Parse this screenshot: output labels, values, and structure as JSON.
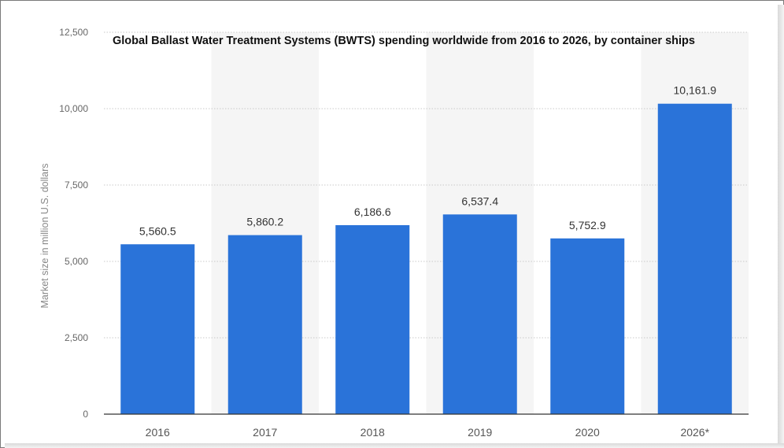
{
  "chart_data": {
    "type": "bar",
    "title": "Global Ballast Water Treatment Systems (BWTS) spending worldwide from 2016 to 2026, by container ships",
    "xlabel": "",
    "ylabel": "Market size in million U.S. dollars",
    "categories": [
      "2016",
      "2017",
      "2018",
      "2019",
      "2020",
      "2026*"
    ],
    "values": [
      5560.5,
      5860.2,
      6186.6,
      6537.4,
      5752.9,
      10161.9
    ],
    "value_labels": [
      "5,560.5",
      "5,860.2",
      "6,186.6",
      "6,537.4",
      "5,752.9",
      "10,161.9"
    ],
    "ylim": [
      0,
      12500
    ],
    "yticks": [
      0,
      2500,
      5000,
      7500,
      10000,
      12500
    ],
    "ytick_labels": [
      "0",
      "2,500",
      "5,000",
      "7,500",
      "10,000",
      "12,500"
    ],
    "grid": true,
    "legend": "none",
    "colors": {
      "bar": "#2a73d9",
      "band": "#f5f5f5",
      "grid": "#c9c9c9",
      "axis_text": "#666666",
      "value_text": "#333333"
    }
  }
}
